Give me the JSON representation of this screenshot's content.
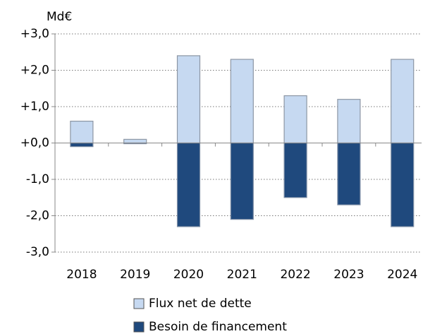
{
  "chart_data": {
    "type": "bar",
    "y_label": "Md€",
    "categories": [
      "2018",
      "2019",
      "2020",
      "2021",
      "2022",
      "2023",
      "2024"
    ],
    "series": [
      {
        "name": "Flux net de dette",
        "color": "#c6d9f1",
        "values": [
          0.6,
          0.1,
          2.4,
          2.3,
          1.3,
          1.2,
          2.3
        ]
      },
      {
        "name": "Besoin de financement",
        "color": "#1f497d",
        "values": [
          -0.1,
          -0.02,
          -2.3,
          -2.1,
          -1.5,
          -1.7,
          -2.3
        ]
      }
    ],
    "ylim": [
      -3,
      3
    ],
    "yticks": [
      {
        "value": 3,
        "label": "+3,0"
      },
      {
        "value": 2,
        "label": "+2,0"
      },
      {
        "value": 1,
        "label": "+1,0"
      },
      {
        "value": 0,
        "label": "+0,0"
      },
      {
        "value": -1,
        "label": "-1,0"
      },
      {
        "value": -2,
        "label": "-2,0"
      },
      {
        "value": -3,
        "label": "-3,0"
      }
    ],
    "grid": true
  }
}
